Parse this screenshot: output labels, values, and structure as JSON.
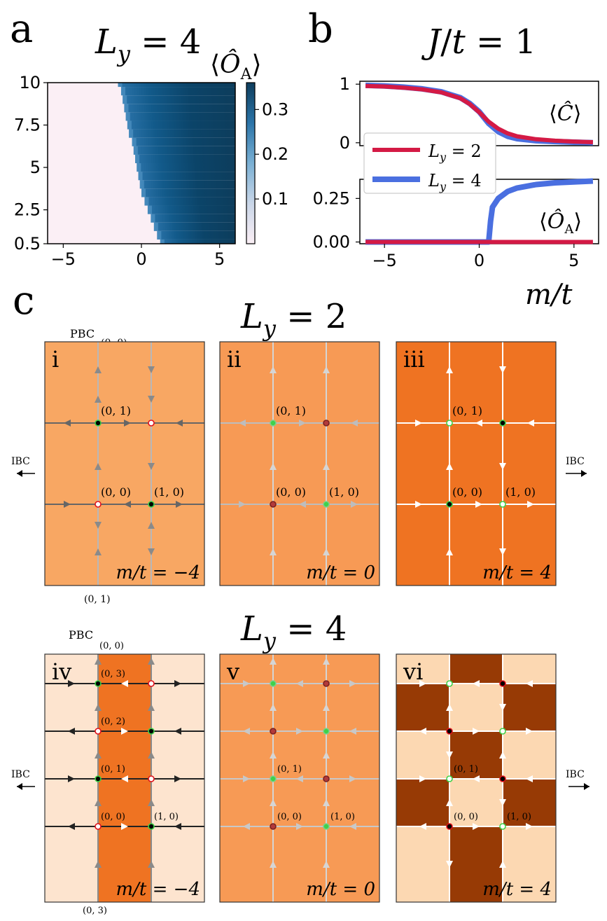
{
  "panel_labels": {
    "a": "a",
    "b": "b",
    "c": "c"
  },
  "panel_a": {
    "title": "L_y = 4",
    "colorbar_label": "⟨Ô_A⟩",
    "colors": {
      "low": "#fbeff5",
      "high": "#0d3d5c"
    }
  },
  "panel_b": {
    "title": "J/t = 1",
    "xlabel": "m/t",
    "top_label": "⟨Ĉ⟩",
    "bottom_label": "⟨Ô_A⟩",
    "legend": [
      "L_y = 2",
      "L_y = 4"
    ],
    "colors": {
      "Ly2": "#d41a45",
      "Ly4": "#4a6fe0"
    }
  },
  "chart_data": [
    {
      "type": "heatmap",
      "title": "L_y = 4",
      "xlabel": "",
      "ylabel": "",
      "xlim": [
        -6,
        6
      ],
      "ylim": [
        0.5,
        10
      ],
      "xticks": [
        "-5",
        "0",
        "5"
      ],
      "yticks": [
        "0.5",
        "2.5",
        "5",
        "7.5",
        "10"
      ],
      "colorbar": {
        "label": "⟨Ô_A⟩",
        "range": [
          0,
          0.36
        ],
        "ticks": [
          "0.1",
          "0.2",
          "0.3"
        ]
      },
      "boundary": {
        "J": [
          0.5,
          1.0,
          1.5,
          2.0,
          2.5,
          3.0,
          3.5,
          4.0,
          4.5,
          5.0,
          5.5,
          6.0,
          6.5,
          7.0,
          7.5,
          8.0,
          8.5,
          9.0,
          9.5,
          10.0
        ],
        "m_c": [
          1.2,
          1.0,
          0.8,
          0.6,
          0.4,
          0.2,
          0.0,
          -0.1,
          -0.2,
          -0.3,
          -0.4,
          -0.5,
          -0.6,
          -0.8,
          -0.9,
          -1.0,
          -1.1,
          -1.2,
          -1.3,
          -1.5
        ]
      }
    },
    {
      "type": "line",
      "title": "J/t = 1",
      "xlabel": "m/t",
      "ylabel": "⟨Ĉ⟩",
      "xlim": [
        -6.3,
        6.3
      ],
      "ylim": [
        -0.05,
        1.05
      ],
      "xticks": [
        "-5",
        "0",
        "5"
      ],
      "yticks": [
        "0",
        "1"
      ],
      "series": [
        {
          "name": "L_y = 2",
          "x": [
            -6,
            -5,
            -4,
            -3,
            -2,
            -1,
            -0.5,
            0,
            0.5,
            1,
            1.5,
            2,
            3,
            4,
            5,
            6
          ],
          "values": [
            0.97,
            0.96,
            0.94,
            0.91,
            0.86,
            0.76,
            0.66,
            0.52,
            0.36,
            0.24,
            0.16,
            0.11,
            0.06,
            0.035,
            0.02,
            0.01
          ]
        },
        {
          "name": "L_y = 4",
          "x": [
            -6,
            -5,
            -4,
            -3,
            -2,
            -1,
            -0.5,
            0,
            0.5,
            1,
            1.5,
            2,
            3,
            4,
            5,
            6
          ],
          "values": [
            0.98,
            0.97,
            0.95,
            0.92,
            0.87,
            0.77,
            0.67,
            0.53,
            0.33,
            0.19,
            0.11,
            0.07,
            0.035,
            0.02,
            0.01,
            0.0
          ]
        }
      ]
    },
    {
      "type": "line",
      "title": "",
      "xlabel": "m/t",
      "ylabel": "⟨Ô_A⟩",
      "xlim": [
        -6.3,
        6.3
      ],
      "ylim": [
        -0.01,
        0.36
      ],
      "xticks": [
        "-5",
        "0",
        "5"
      ],
      "yticks": [
        "0.00",
        "0.25"
      ],
      "series": [
        {
          "name": "L_y = 2",
          "x": [
            -6,
            0,
            0.6,
            6
          ],
          "values": [
            0.0,
            0.0,
            0.0,
            0.0
          ]
        },
        {
          "name": "L_y = 4",
          "x": [
            -6,
            0.5,
            0.6,
            0.7,
            1.0,
            1.5,
            2,
            3,
            4,
            5,
            6
          ],
          "values": [
            0.0,
            0.0,
            0.12,
            0.2,
            0.25,
            0.29,
            0.31,
            0.33,
            0.34,
            0.345,
            0.35
          ]
        }
      ]
    }
  ],
  "panel_c": {
    "top": {
      "heading": "L_y = 2",
      "pbc": "PBC",
      "pbc_coord": "(0, 0)",
      "bottom_coord": "(0, 1)",
      "ibc": "IBC",
      "panels": [
        {
          "roman": "i",
          "mlabel": "m/t = −4",
          "sites": [
            "(0, 1)",
            "(0, 0)",
            "(1, 0)"
          ]
        },
        {
          "roman": "ii",
          "mlabel": "m/t = 0",
          "sites": [
            "(0, 1)",
            "(0, 0)",
            "(1, 0)"
          ]
        },
        {
          "roman": "iii",
          "mlabel": "m/t = 4",
          "sites": [
            "(0, 1)",
            "(0, 0)",
            "(1, 0)"
          ]
        }
      ]
    },
    "bottom": {
      "heading": "L_y = 4",
      "pbc": "PBC",
      "pbc_coord": "(0, 0)",
      "bottom_coord": "(0, 3)",
      "ibc": "IBC",
      "panels": [
        {
          "roman": "iv",
          "mlabel": "m/t = −4",
          "sites": [
            "(0, 3)",
            "(0, 2)",
            "(0, 1)",
            "(0, 0)",
            "(1, 0)"
          ]
        },
        {
          "roman": "v",
          "mlabel": "m/t = 0",
          "sites": [
            "(0, 1)",
            "(0, 0)",
            "(1, 0)"
          ]
        },
        {
          "roman": "vi",
          "mlabel": "m/t = 4",
          "sites": [
            "(0, 1)",
            "(0, 0)",
            "(1, 0)"
          ]
        }
      ]
    },
    "colors": {
      "light_orange": "#f8a763",
      "mid_orange": "#f79a55",
      "dark_orange": "#ef7322",
      "pale": "#fde4cf",
      "peach": "#fcd8b2",
      "brown": "#973a05",
      "site_green": "#3ed24a",
      "site_red": "#e0101a",
      "site_dark": "#b23a3a"
    }
  }
}
